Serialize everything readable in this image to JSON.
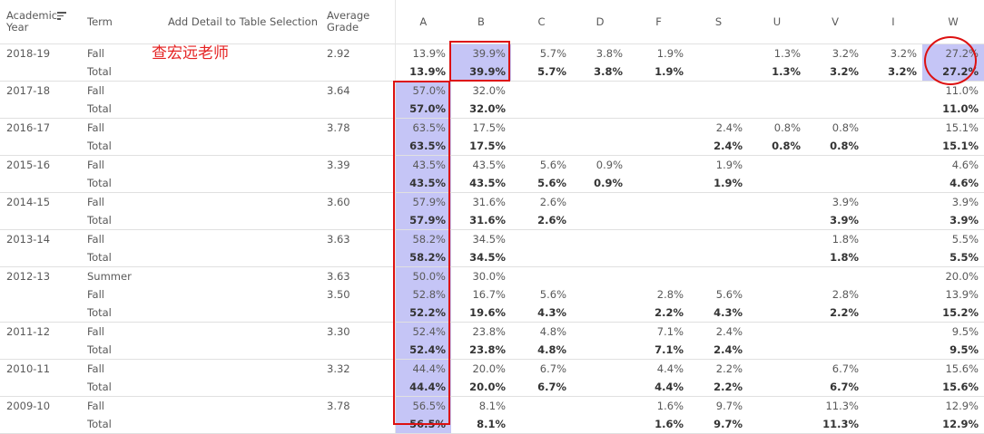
{
  "header": {
    "academic_year": "Academic Year",
    "term": "Term",
    "add_detail": "Add Detail to Table Selection",
    "average_grade": "Average Grade",
    "grades": [
      "A",
      "B",
      "C",
      "D",
      "F",
      "S",
      "U",
      "V",
      "I",
      "W"
    ]
  },
  "annotation": {
    "text": "查宏远老师"
  },
  "rows": [
    {
      "year": "2018-19",
      "term": "Fall",
      "avg": "2.92",
      "vals": [
        "13.9%",
        "39.9%",
        "5.7%",
        "3.8%",
        "1.9%",
        "",
        "1.3%",
        "3.2%",
        "3.2%",
        "27.2%"
      ]
    },
    {
      "year": "",
      "term": "Total",
      "avg": "",
      "vals": [
        "13.9%",
        "39.9%",
        "5.7%",
        "3.8%",
        "1.9%",
        "",
        "1.3%",
        "3.2%",
        "3.2%",
        "27.2%"
      ]
    },
    {
      "year": "2017-18",
      "term": "Fall",
      "avg": "3.64",
      "vals": [
        "57.0%",
        "32.0%",
        "",
        "",
        "",
        "",
        "",
        "",
        "",
        "11.0%"
      ]
    },
    {
      "year": "",
      "term": "Total",
      "avg": "",
      "vals": [
        "57.0%",
        "32.0%",
        "",
        "",
        "",
        "",
        "",
        "",
        "",
        "11.0%"
      ]
    },
    {
      "year": "2016-17",
      "term": "Fall",
      "avg": "3.78",
      "vals": [
        "63.5%",
        "17.5%",
        "",
        "",
        "",
        "2.4%",
        "0.8%",
        "0.8%",
        "",
        "15.1%"
      ]
    },
    {
      "year": "",
      "term": "Total",
      "avg": "",
      "vals": [
        "63.5%",
        "17.5%",
        "",
        "",
        "",
        "2.4%",
        "0.8%",
        "0.8%",
        "",
        "15.1%"
      ]
    },
    {
      "year": "2015-16",
      "term": "Fall",
      "avg": "3.39",
      "vals": [
        "43.5%",
        "43.5%",
        "5.6%",
        "0.9%",
        "",
        "1.9%",
        "",
        "",
        "",
        "4.6%"
      ]
    },
    {
      "year": "",
      "term": "Total",
      "avg": "",
      "vals": [
        "43.5%",
        "43.5%",
        "5.6%",
        "0.9%",
        "",
        "1.9%",
        "",
        "",
        "",
        "4.6%"
      ]
    },
    {
      "year": "2014-15",
      "term": "Fall",
      "avg": "3.60",
      "vals": [
        "57.9%",
        "31.6%",
        "2.6%",
        "",
        "",
        "",
        "",
        "3.9%",
        "",
        "3.9%"
      ]
    },
    {
      "year": "",
      "term": "Total",
      "avg": "",
      "vals": [
        "57.9%",
        "31.6%",
        "2.6%",
        "",
        "",
        "",
        "",
        "3.9%",
        "",
        "3.9%"
      ]
    },
    {
      "year": "2013-14",
      "term": "Fall",
      "avg": "3.63",
      "vals": [
        "58.2%",
        "34.5%",
        "",
        "",
        "",
        "",
        "",
        "1.8%",
        "",
        "5.5%"
      ]
    },
    {
      "year": "",
      "term": "Total",
      "avg": "",
      "vals": [
        "58.2%",
        "34.5%",
        "",
        "",
        "",
        "",
        "",
        "1.8%",
        "",
        "5.5%"
      ]
    },
    {
      "year": "2012-13",
      "term": "Summer",
      "avg": "3.63",
      "vals": [
        "50.0%",
        "30.0%",
        "",
        "",
        "",
        "",
        "",
        "",
        "",
        "20.0%"
      ]
    },
    {
      "year": "",
      "term": "Fall",
      "avg": "3.50",
      "vals": [
        "52.8%",
        "16.7%",
        "5.6%",
        "",
        "2.8%",
        "5.6%",
        "",
        "2.8%",
        "",
        "13.9%"
      ]
    },
    {
      "year": "",
      "term": "Total",
      "avg": "",
      "vals": [
        "52.2%",
        "19.6%",
        "4.3%",
        "",
        "2.2%",
        "4.3%",
        "",
        "2.2%",
        "",
        "15.2%"
      ]
    },
    {
      "year": "2011-12",
      "term": "Fall",
      "avg": "3.30",
      "vals": [
        "52.4%",
        "23.8%",
        "4.8%",
        "",
        "7.1%",
        "2.4%",
        "",
        "",
        "",
        "9.5%"
      ]
    },
    {
      "year": "",
      "term": "Total",
      "avg": "",
      "vals": [
        "52.4%",
        "23.8%",
        "4.8%",
        "",
        "7.1%",
        "2.4%",
        "",
        "",
        "",
        "9.5%"
      ]
    },
    {
      "year": "2010-11",
      "term": "Fall",
      "avg": "3.32",
      "vals": [
        "44.4%",
        "20.0%",
        "6.7%",
        "",
        "4.4%",
        "2.2%",
        "",
        "6.7%",
        "",
        "15.6%"
      ]
    },
    {
      "year": "",
      "term": "Total",
      "avg": "",
      "vals": [
        "44.4%",
        "20.0%",
        "6.7%",
        "",
        "4.4%",
        "2.2%",
        "",
        "6.7%",
        "",
        "15.6%"
      ]
    },
    {
      "year": "2009-10",
      "term": "Fall",
      "avg": "3.78",
      "vals": [
        "56.5%",
        "8.1%",
        "",
        "",
        "1.6%",
        "9.7%",
        "",
        "11.3%",
        "",
        "12.9%"
      ]
    },
    {
      "year": "",
      "term": "Total",
      "avg": "",
      "vals": [
        "56.5%",
        "8.1%",
        "",
        "",
        "1.6%",
        "9.7%",
        "",
        "11.3%",
        "",
        "12.9%"
      ]
    }
  ],
  "colors": {
    "highlight": "#c5c5f6",
    "annotation_red": "#dd1111"
  }
}
